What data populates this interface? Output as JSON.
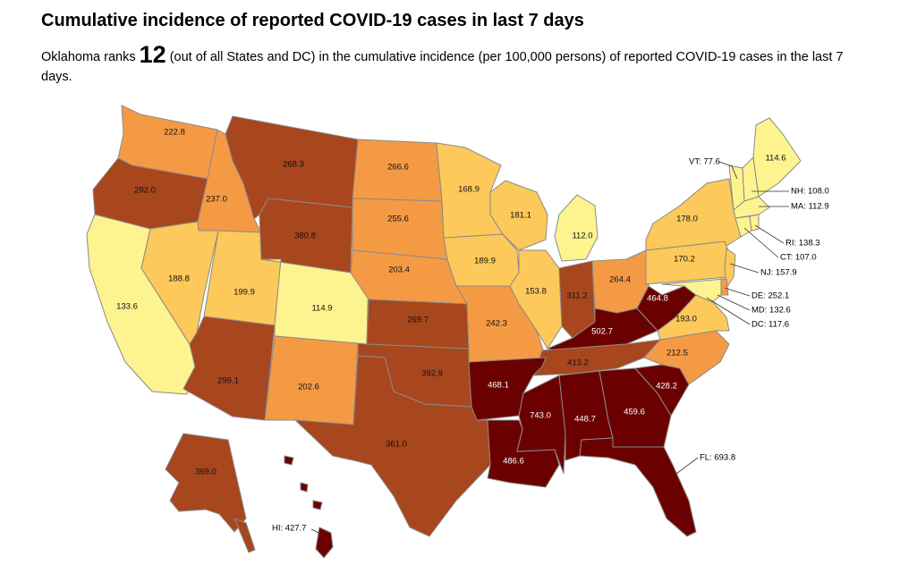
{
  "title": "Cumulative incidence of reported COVID-19 cases in last 7 days",
  "subtitle": {
    "prefix": "Oklahoma ranks",
    "rank": "12",
    "suffix": "(out of all States and DC) in the cumulative incidence (per 100,000 persons) of reported COVID-19 cases in the last 7 days."
  },
  "colors": {
    "very_high": "#6b0000",
    "high": "#a8461e",
    "medium": "#f59a44",
    "low": "#fcc95a",
    "very_low": "#fdf48f",
    "border": "#8a8a8a"
  },
  "states": {
    "WA": "222.8",
    "OR": "292.0",
    "CA": "133.6",
    "ID": "237.0",
    "NV": "188.8",
    "MT": "268.3",
    "WY": "380.8",
    "UT": "199.9",
    "AZ": "299.1",
    "CO": "114.9",
    "NM": "202.6",
    "ND": "266.6",
    "SD": "255.6",
    "NE": "203.4",
    "KS": "269.7",
    "OK": "392.9",
    "TX": "361.0",
    "MN": "168.9",
    "IA": "189.9",
    "MO": "242.3",
    "AR": "468.1",
    "LA": "486.6",
    "WI": "181.1",
    "IL": "153.8",
    "MI": "112.0",
    "IN": "311.2",
    "OH": "264.4",
    "KY": "502.7",
    "TN": "413.2",
    "MS": "743.0",
    "AL": "448.7",
    "GA": "459.6",
    "SC": "428.2",
    "NC": "212.5",
    "VA": "193.0",
    "WV": "464.8",
    "PA": "170.2",
    "NY": "178.0",
    "ME": "114.6",
    "AK": "369.0"
  },
  "callouts": {
    "VT": "VT: 77.6",
    "NH": "NH: 108.0",
    "MA": "MA: 112.9",
    "RI": "RI: 138.3",
    "CT": "CT: 107.0",
    "NJ": "NJ: 157.9",
    "DE": "DE: 252.1",
    "MD": "MD: 132.6",
    "DC": "DC: 117.6",
    "FL": "FL: 693.8",
    "HI": "HI: 427.7"
  }
}
